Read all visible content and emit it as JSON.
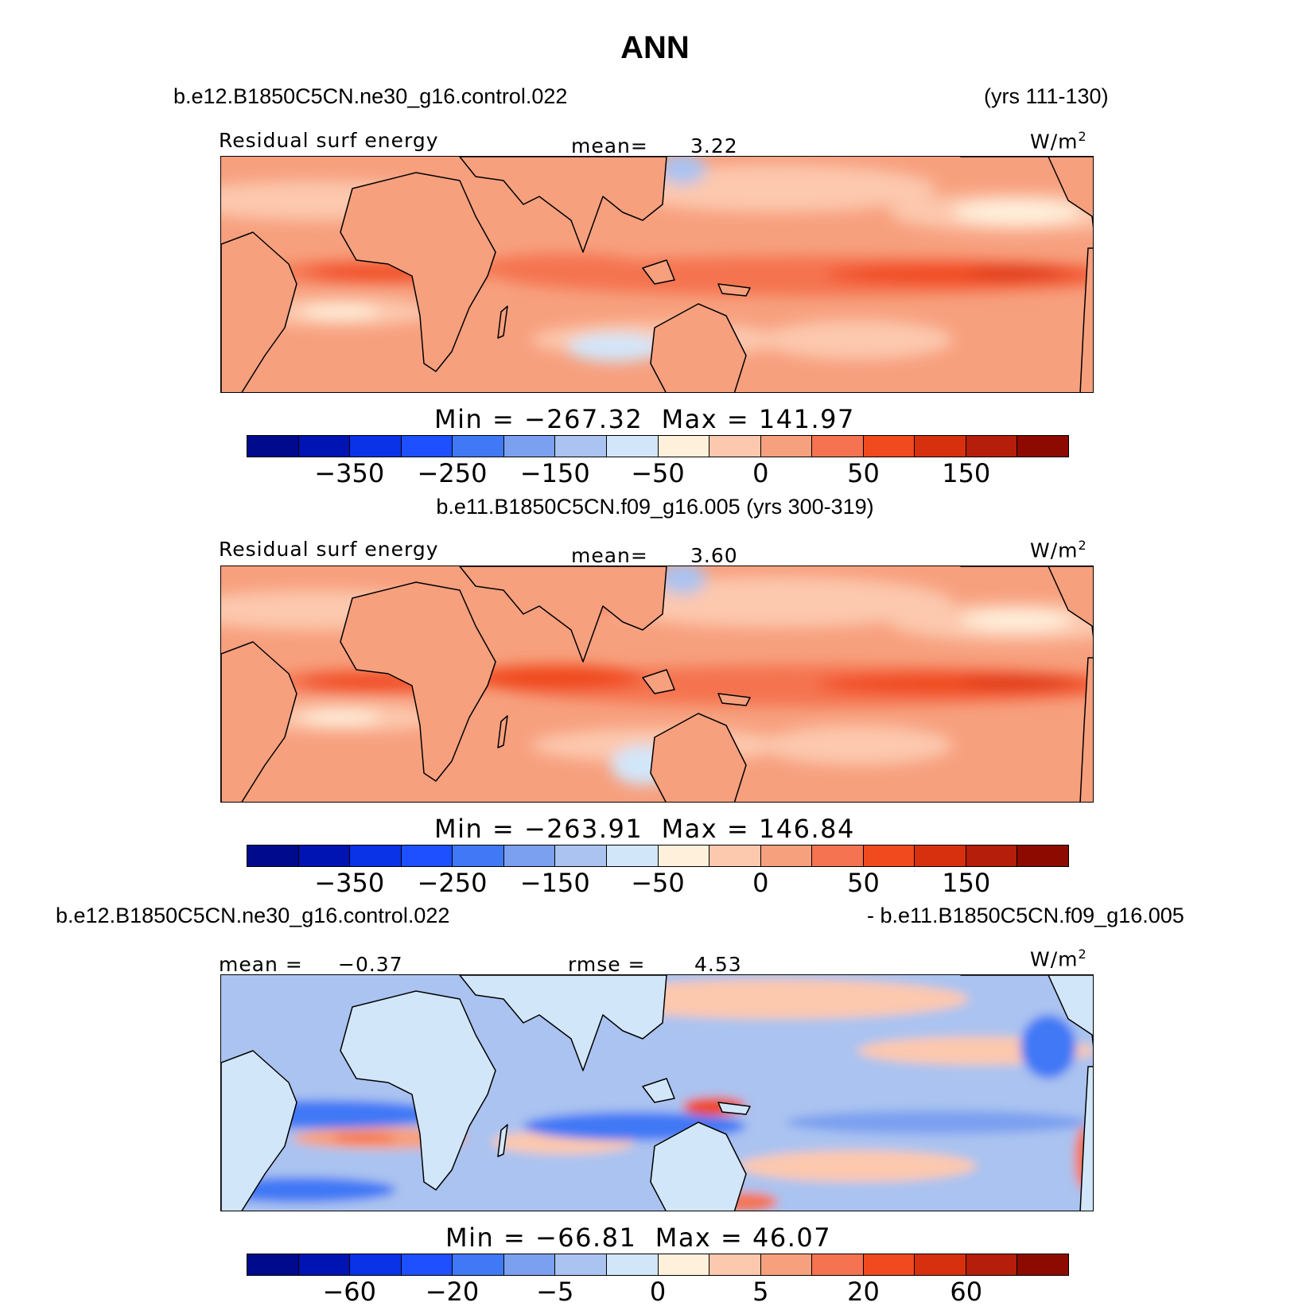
{
  "page": {
    "title": "ANN"
  },
  "panels": [
    {
      "case_left": "b.e12.B1850C5CN.ne30_g16.control.022",
      "case_right": "(yrs 111-130)",
      "variable": "Residual surf energy",
      "stat_label": "mean=",
      "stat_value": "3.22",
      "units": "W/m",
      "units_sup": "2",
      "min_label": "Min = ",
      "min_value": "−267.32",
      "max_label": "Max = ",
      "max_value": "141.97",
      "tick_labels": [
        "−350",
        "−250",
        "−150",
        "−50",
        "0",
        "50",
        "150"
      ]
    },
    {
      "case_center": "b.e11.B1850C5CN.f09_g16.005 (yrs 300-319)",
      "variable": "Residual surf energy",
      "stat_label": "mean=",
      "stat_value": "3.60",
      "units": "W/m",
      "units_sup": "2",
      "min_label": "Min = ",
      "min_value": "−263.91",
      "max_label": "Max = ",
      "max_value": "146.84",
      "tick_labels": [
        "−350",
        "−250",
        "−150",
        "−50",
        "0",
        "50",
        "150"
      ]
    },
    {
      "case_left": "b.e12.B1850C5CN.ne30_g16.control.022",
      "case_right": "- b.e11.B1850C5CN.f09_g16.005",
      "mean_label": "mean = ",
      "mean_value": "−0.37",
      "rmse_label": "rmse = ",
      "rmse_value": "4.53",
      "units": "W/m",
      "units_sup": "2",
      "min_label": "Min = ",
      "min_value": "−66.81",
      "max_label": "Max = ",
      "max_value": "46.07",
      "tick_labels": [
        "−60",
        "−20",
        "−5",
        "0",
        "5",
        "20",
        "60"
      ]
    }
  ],
  "colormap": {
    "colors": [
      "#000a8c",
      "#0014b4",
      "#0a32e6",
      "#1e50ff",
      "#4178f5",
      "#7ca0f0",
      "#aac3f0",
      "#d2e6fa",
      "#fff0dc",
      "#fcc8ae",
      "#f7a07e",
      "#f57350",
      "#f04a1e",
      "#d7300f",
      "#b41e0a",
      "#8c0a00"
    ]
  }
}
